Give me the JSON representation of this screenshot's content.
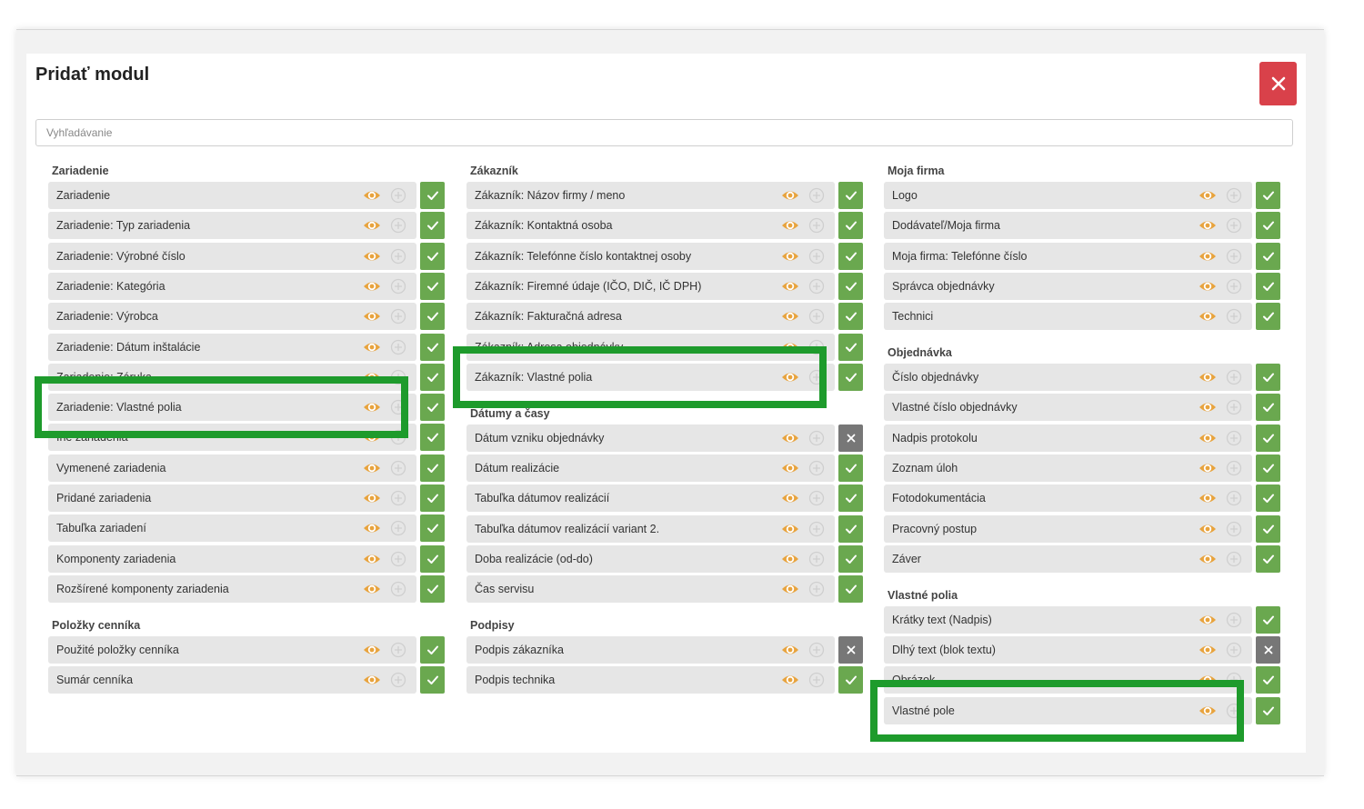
{
  "modal": {
    "title": "Pridať modul",
    "close_label": "✕"
  },
  "search": {
    "placeholder": "Vyhľadávanie",
    "value": ""
  },
  "colors": {
    "accent_green": "#6aa84f",
    "eye_orange": "#e8a33d",
    "close_red": "#d9414a",
    "off_gray": "#777777",
    "highlight_green": "#1e9b2c"
  },
  "icons": {
    "eye": "eye-icon",
    "plus": "plus-circle-icon",
    "check": "check-icon",
    "cross": "x-icon",
    "close": "close-icon"
  },
  "columns": [
    {
      "sections": [
        {
          "title": "Zariadenie",
          "items": [
            {
              "label": "Zariadenie",
              "enabled": true
            },
            {
              "label": "Zariadenie: Typ zariadenia",
              "enabled": true
            },
            {
              "label": "Zariadenie: Výrobné číslo",
              "enabled": true
            },
            {
              "label": "Zariadenie: Kategória",
              "enabled": true
            },
            {
              "label": "Zariadenie: Výrobca",
              "enabled": true
            },
            {
              "label": "Zariadenie: Dátum inštalácie",
              "enabled": true
            },
            {
              "label": "Zariadenie: Záruka",
              "enabled": true
            },
            {
              "label": "Zariadenie: Vlastné polia",
              "enabled": true,
              "highlighted": true
            },
            {
              "label": "Iné zariadenia",
              "enabled": true
            },
            {
              "label": "Vymenené zariadenia",
              "enabled": true
            },
            {
              "label": "Pridané zariadenia",
              "enabled": true
            },
            {
              "label": "Tabuľka zariadení",
              "enabled": true
            },
            {
              "label": "Komponenty zariadenia",
              "enabled": true
            },
            {
              "label": "Rozšírené komponenty zariadenia",
              "enabled": true
            }
          ]
        },
        {
          "title": "Položky cenníka",
          "items": [
            {
              "label": "Použité položky cenníka",
              "enabled": true
            },
            {
              "label": "Sumár cenníka",
              "enabled": true
            }
          ]
        }
      ]
    },
    {
      "sections": [
        {
          "title": "Zákazník",
          "items": [
            {
              "label": "Zákazník: Názov firmy / meno",
              "enabled": true
            },
            {
              "label": "Zákazník: Kontaktná osoba",
              "enabled": true
            },
            {
              "label": "Zákazník: Telefónne číslo kontaktnej osoby",
              "enabled": true
            },
            {
              "label": "Zákazník: Firemné údaje (IČO, DIČ, IČ DPH)",
              "enabled": true
            },
            {
              "label": "Zákazník: Fakturačná adresa",
              "enabled": true
            },
            {
              "label": "Zákazník: Adresa objednávky",
              "enabled": true
            },
            {
              "label": "Zákazník: Vlastné polia",
              "enabled": true,
              "highlighted": true
            }
          ]
        },
        {
          "title": "Dátumy a časy",
          "items": [
            {
              "label": "Dátum vzniku objednávky",
              "enabled": false
            },
            {
              "label": "Dátum realizácie",
              "enabled": true
            },
            {
              "label": "Tabuľka dátumov realizácií",
              "enabled": true
            },
            {
              "label": "Tabuľka dátumov realizácií variant 2.",
              "enabled": true
            },
            {
              "label": "Doba realizácie (od-do)",
              "enabled": true
            },
            {
              "label": "Čas servisu",
              "enabled": true
            }
          ]
        },
        {
          "title": "Podpisy",
          "items": [
            {
              "label": "Podpis zákazníka",
              "enabled": false
            },
            {
              "label": "Podpis technika",
              "enabled": true
            }
          ]
        }
      ]
    },
    {
      "sections": [
        {
          "title": "Moja firma",
          "items": [
            {
              "label": "Logo",
              "enabled": true
            },
            {
              "label": "Dodávateľ/Moja firma",
              "enabled": true
            },
            {
              "label": "Moja firma: Telefónne číslo",
              "enabled": true
            },
            {
              "label": "Správca objednávky",
              "enabled": true
            },
            {
              "label": "Technici",
              "enabled": true
            }
          ]
        },
        {
          "title": "Objednávka",
          "items": [
            {
              "label": "Číslo objednávky",
              "enabled": true
            },
            {
              "label": "Vlastné číslo objednávky",
              "enabled": true
            },
            {
              "label": "Nadpis protokolu",
              "enabled": true
            },
            {
              "label": "Zoznam úloh",
              "enabled": true
            },
            {
              "label": "Fotodokumentácia",
              "enabled": true
            },
            {
              "label": "Pracovný postup",
              "enabled": true
            },
            {
              "label": "Záver",
              "enabled": true
            }
          ]
        },
        {
          "title": "Vlastné polia",
          "items": [
            {
              "label": "Krátky text (Nadpis)",
              "enabled": true
            },
            {
              "label": "Dlhý text (blok textu)",
              "enabled": false
            },
            {
              "label": "Obrázok",
              "enabled": true
            },
            {
              "label": "Vlastné pole",
              "enabled": true,
              "highlighted": true
            }
          ]
        }
      ]
    }
  ]
}
